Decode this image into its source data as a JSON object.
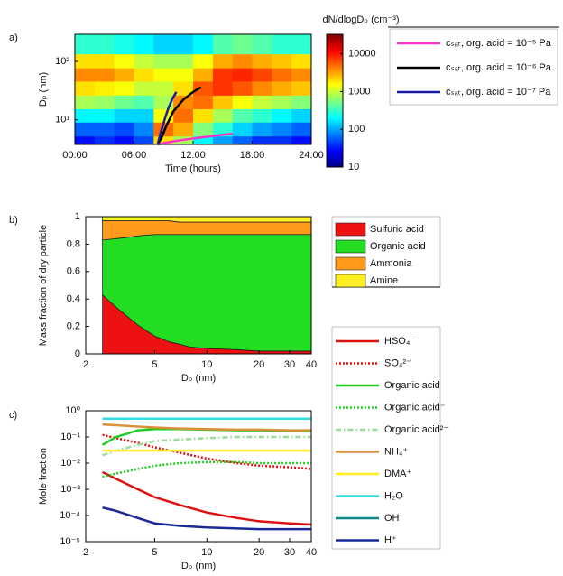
{
  "chart_data": [
    {
      "type": "heatmap",
      "label": "a)",
      "xlabel": "Time (hours)",
      "ylabel": "Dₚ (nm)",
      "colorbar_label": "dN/dlogDₚ (cm⁻³)",
      "colormap": "jet",
      "y_scale": "log",
      "z_scale": "log",
      "xlim": [
        0,
        24
      ],
      "xticks": [
        {
          "value": 0,
          "label": "00:00"
        },
        {
          "value": 6,
          "label": "06:00"
        },
        {
          "value": 12,
          "label": "12:00"
        },
        {
          "value": 18,
          "label": "18:00"
        },
        {
          "value": 24,
          "label": "24:00"
        }
      ],
      "ylim": [
        3.8,
        290
      ],
      "yticks": [
        {
          "value": 10,
          "label": "10¹"
        },
        {
          "value": 100,
          "label": "10²"
        }
      ],
      "zlim": [
        10,
        33000
      ],
      "zticks": [
        10,
        100,
        1000,
        10000
      ],
      "x": [
        1,
        3,
        5,
        7,
        9,
        11,
        13,
        15,
        17,
        19,
        21,
        23
      ],
      "y": [
        4,
        7,
        12,
        20,
        35,
        60,
        100,
        180
      ],
      "z": [
        [
          30,
          40,
          30,
          50,
          2000,
          800,
          200,
          100,
          60,
          40,
          40,
          30
        ],
        [
          60,
          60,
          50,
          80,
          5000,
          3000,
          600,
          300,
          150,
          100,
          80,
          60
        ],
        [
          200,
          200,
          150,
          150,
          1500,
          5000,
          2000,
          800,
          400,
          300,
          200,
          150
        ],
        [
          800,
          700,
          500,
          400,
          800,
          4000,
          5000,
          2500,
          1500,
          1000,
          800,
          600
        ],
        [
          2000,
          1800,
          1500,
          1000,
          1000,
          2000,
          6000,
          8000,
          6000,
          4000,
          3000,
          2500
        ],
        [
          4000,
          4000,
          3000,
          2000,
          1500,
          1500,
          3000,
          8000,
          9000,
          7000,
          5000,
          4000
        ],
        [
          2000,
          2000,
          1500,
          1000,
          800,
          800,
          1500,
          3000,
          4000,
          3000,
          2500,
          2000
        ],
        [
          300,
          300,
          250,
          200,
          150,
          150,
          200,
          400,
          500,
          400,
          300,
          300
        ]
      ],
      "series": [
        {
          "name": "cₛₐₜ, org. acid = 10⁻⁵ Pa",
          "color": "#ff33cc",
          "x": [
            8.4,
            9,
            10,
            12,
            14,
            16
          ],
          "values": [
            3.8,
            4.0,
            4.3,
            4.8,
            5.3,
            5.8
          ]
        },
        {
          "name": "cₛₐₜ, org. acid = 10⁻⁶ Pa",
          "color": "#000000",
          "x": [
            8.4,
            8.8,
            9.3,
            10,
            11,
            12,
            12.8
          ],
          "values": [
            3.8,
            5,
            8,
            14,
            22,
            30,
            36
          ]
        },
        {
          "name": "cₛₐₜ, org. acid = 10⁻⁷ Pa",
          "color": "#1a1aa6",
          "x": [
            8.4,
            8.7,
            9.1,
            9.5,
            9.9,
            10.3
          ],
          "values": [
            3.8,
            6,
            10,
            16,
            23,
            30
          ]
        }
      ]
    },
    {
      "type": "stacked_area",
      "label": "b)",
      "xlabel": "Dₚ (nm)",
      "ylabel": "Mass fraction of dry particle",
      "x_scale": "log",
      "xlim": [
        2,
        40
      ],
      "xticks": [
        2,
        5,
        10,
        20,
        30,
        40
      ],
      "ylim": [
        0,
        1
      ],
      "yticks": [
        0,
        0.2,
        0.4,
        0.6,
        0.8,
        1
      ],
      "x": [
        2.5,
        3,
        3.5,
        4,
        5,
        6,
        7,
        8,
        10,
        15,
        20,
        30,
        40
      ],
      "series": [
        {
          "name": "Sulfuric acid",
          "color": "#ee1111",
          "values": [
            0.43,
            0.34,
            0.27,
            0.21,
            0.13,
            0.09,
            0.07,
            0.05,
            0.04,
            0.03,
            0.02,
            0.02,
            0.02
          ]
        },
        {
          "name": "Organic acid",
          "color": "#22dd22",
          "values": [
            0.4,
            0.5,
            0.58,
            0.65,
            0.74,
            0.78,
            0.8,
            0.82,
            0.83,
            0.84,
            0.85,
            0.85,
            0.85
          ]
        },
        {
          "name": "Ammonia",
          "color": "#ff9a1a",
          "values": [
            0.14,
            0.13,
            0.12,
            0.11,
            0.1,
            0.1,
            0.09,
            0.09,
            0.09,
            0.09,
            0.09,
            0.09,
            0.09
          ]
        },
        {
          "name": "Amine",
          "color": "#ffee22",
          "values": [
            0.03,
            0.03,
            0.03,
            0.03,
            0.03,
            0.03,
            0.04,
            0.04,
            0.04,
            0.04,
            0.04,
            0.04,
            0.04
          ]
        }
      ]
    },
    {
      "type": "line",
      "label": "c)",
      "xlabel": "Dₚ (nm)",
      "ylabel": "Mole fraction",
      "x_scale": "log",
      "y_scale": "log",
      "xlim": [
        2,
        40
      ],
      "xticks": [
        2,
        5,
        10,
        20,
        30,
        40
      ],
      "ylim": [
        1e-05,
        1
      ],
      "yticks": [
        {
          "value": 1,
          "label": "10⁰"
        },
        {
          "value": 0.1,
          "label": "10⁻¹"
        },
        {
          "value": 0.01,
          "label": "10⁻²"
        },
        {
          "value": 0.001,
          "label": "10⁻³"
        },
        {
          "value": 0.0001,
          "label": "10⁻⁴"
        },
        {
          "value": 1e-05,
          "label": "10⁻⁵"
        }
      ],
      "x": [
        2.5,
        3,
        4,
        5,
        7,
        10,
        15,
        20,
        30,
        40
      ],
      "series": [
        {
          "name": "HSO₄⁻",
          "color": "#dd1111",
          "dash": "solid",
          "values": [
            0.0045,
            0.0025,
            0.001,
            0.0005,
            0.00025,
            0.00013,
            8e-05,
            6e-05,
            5e-05,
            4.5e-05
          ]
        },
        {
          "name": "SO₄²⁻",
          "color": "#dd1111",
          "dash": "dotted",
          "values": [
            0.12,
            0.09,
            0.06,
            0.04,
            0.025,
            0.015,
            0.01,
            0.008,
            0.007,
            0.006
          ]
        },
        {
          "name": "Organic acid",
          "color": "#22cc22",
          "dash": "solid",
          "values": [
            0.05,
            0.1,
            0.18,
            0.2,
            0.2,
            0.19,
            0.18,
            0.18,
            0.17,
            0.17
          ]
        },
        {
          "name": "Organic acid⁻",
          "color": "#22cc22",
          "dash": "dotted",
          "values": [
            0.003,
            0.004,
            0.006,
            0.008,
            0.01,
            0.011,
            0.011,
            0.01,
            0.01,
            0.01
          ]
        },
        {
          "name": "Organic acid²⁻",
          "color": "#99dd99",
          "dash": "dashdot",
          "values": [
            0.02,
            0.03,
            0.05,
            0.07,
            0.08,
            0.09,
            0.1,
            0.1,
            0.1,
            0.1
          ]
        },
        {
          "name": "NH₄⁺",
          "color": "#d9913a",
          "dash": "solid",
          "values": [
            0.3,
            0.28,
            0.25,
            0.23,
            0.21,
            0.2,
            0.19,
            0.19,
            0.18,
            0.18
          ]
        },
        {
          "name": "DMA⁺",
          "color": "#ffee22",
          "dash": "solid",
          "values": [
            0.03,
            0.03,
            0.03,
            0.03,
            0.03,
            0.03,
            0.03,
            0.03,
            0.03,
            0.03
          ]
        },
        {
          "name": "H₂O",
          "color": "#33dddd",
          "dash": "solid",
          "values": [
            0.5,
            0.5,
            0.5,
            0.5,
            0.5,
            0.5,
            0.5,
            0.5,
            0.5,
            0.5
          ]
        },
        {
          "name": "OH⁻",
          "color": "#118888",
          "dash": "solid",
          "values": [
            null,
            null,
            null,
            null,
            null,
            null,
            null,
            null,
            null,
            null
          ]
        },
        {
          "name": "H⁺",
          "color": "#1a2a99",
          "dash": "solid",
          "values": [
            0.0002,
            0.00015,
            8e-05,
            5e-05,
            4e-05,
            3.5e-05,
            3.2e-05,
            3e-05,
            3e-05,
            3e-05
          ]
        }
      ]
    }
  ]
}
